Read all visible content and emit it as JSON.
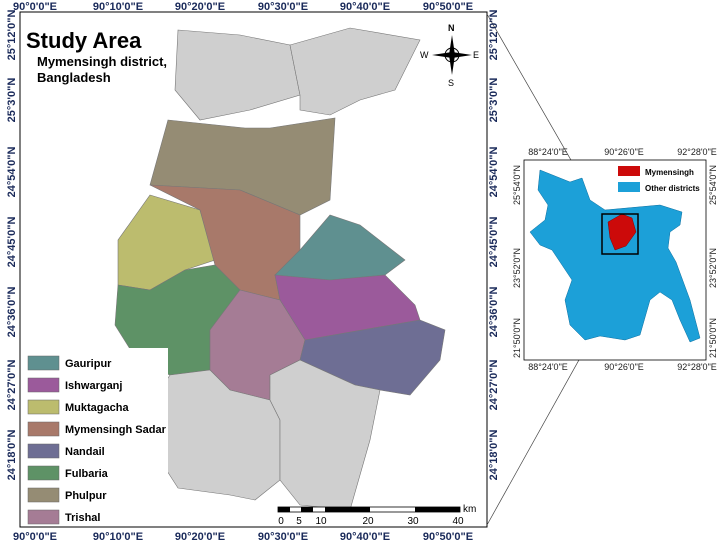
{
  "main_map": {
    "title": "Study Area",
    "subtitle_lines": [
      "Mymensingh district,",
      "Bangladesh"
    ],
    "top_labels": [
      "90°0'0\"E",
      "90°10'0\"E",
      "90°20'0\"E",
      "90°30'0\"E",
      "90°40'0\"E",
      "90°50'0\"E"
    ],
    "bottom_labels": [
      "90°0'0\"E",
      "90°10'0\"E",
      "90°20'0\"E",
      "90°30'0\"E",
      "90°40'0\"E",
      "90°50'0\"E"
    ],
    "left_labels": [
      "25°12'0\"N",
      "25°3'0\"N",
      "24°54'0\"N",
      "24°45'0\"N",
      "24°36'0\"N",
      "24°27'0\"N",
      "24°18'0\"N"
    ],
    "right_labels": [
      "25°12'0\"N",
      "25°3'0\"N",
      "24°54'0\"N",
      "24°45'0\"N",
      "24°36'0\"N",
      "24°27'0\"N",
      "24°18'0\"N"
    ],
    "legend": [
      {
        "name": "Gauripur",
        "color": "#5f9090"
      },
      {
        "name": "Ishwarganj",
        "color": "#9b5a9b"
      },
      {
        "name": "Muktagacha",
        "color": "#bcbc6e"
      },
      {
        "name": "Mymensingh Sadar",
        "color": "#a8796a"
      },
      {
        "name": "Nandail",
        "color": "#6e6e94"
      },
      {
        "name": "Fulbaria",
        "color": "#5e9266"
      },
      {
        "name": "Phulpur",
        "color": "#958c74"
      },
      {
        "name": "Trishal",
        "color": "#a57c95"
      }
    ],
    "north_arrow": {
      "n": "N",
      "s": "S",
      "e": "E",
      "w": "W"
    },
    "scale": {
      "ticks": [
        0,
        5,
        10,
        20,
        30,
        40
      ],
      "unit": "km"
    }
  },
  "inset_map": {
    "top_labels": [
      "88°24'0\"E",
      "90°26'0\"E",
      "92°28'0\"E"
    ],
    "bottom_labels": [
      "88°24'0\"E",
      "90°26'0\"E",
      "92°28'0\"E"
    ],
    "left_labels": [
      "25°54'0\"N",
      "23°52'0\"N",
      "21°50'0\"N"
    ],
    "right_labels": [
      "25°54'0\"N",
      "23°52'0\"N",
      "21°50'0\"N"
    ],
    "legend": [
      {
        "name": "Mymensingh",
        "color": "#cc0a0a"
      },
      {
        "name": "Other districts",
        "color": "#1ca0d8"
      }
    ]
  }
}
